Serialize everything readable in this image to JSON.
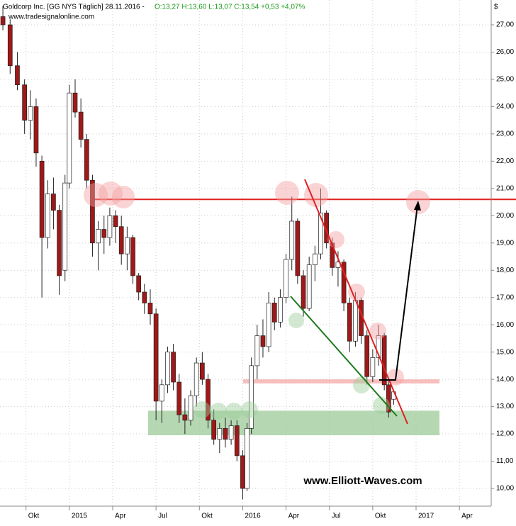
{
  "header": {
    "title": "Goldcorp Inc. [GG NYS  Täglich] 28.11.2016 -",
    "quote": "O:13,27 H:13,60 L:13,07 C:13,54 +0,53 +4,07%",
    "source": "www.tradesignalonline.com",
    "currency": "$"
  },
  "watermark": "www.Elliott-Waves.com",
  "chart_data": {
    "type": "candlestick",
    "x": [
      -1.6,
      -1.1,
      -0.6,
      -0.1,
      0.3,
      0.7,
      1.1,
      1.5,
      1.9,
      2.3,
      2.7,
      3.0,
      3.4,
      3.8,
      4.2,
      4.6,
      5.0,
      5.4,
      5.8,
      6.2,
      6.6,
      7.0,
      7.4,
      7.8,
      8.2,
      8.6,
      9.0,
      9.4,
      9.8,
      10.2,
      10.6,
      11.0,
      11.4,
      11.8,
      12.2,
      12.6,
      13.0,
      13.4,
      13.8,
      14.2,
      14.6,
      15.0,
      15.3,
      15.6,
      16.0,
      16.4,
      16.8,
      17.2,
      17.6,
      18.0,
      18.4,
      18.8,
      19.2,
      19.6,
      20.0,
      20.4,
      20.8,
      21.2,
      21.6,
      22.0,
      22.4,
      22.8,
      23.2,
      23.6,
      24.0,
      24.4,
      24.8,
      25.1,
      25.45
    ],
    "open": [
      27.3,
      27.0,
      25.5,
      24.8,
      23.5,
      24.0,
      22.0,
      19.2,
      20.8,
      20.2,
      18.0,
      21.2,
      24.5,
      23.8,
      22.8,
      21.3,
      19.0,
      19.5,
      19.2,
      20.0,
      19.6,
      18.6,
      19.2,
      17.8,
      17.2,
      16.8,
      16.4,
      13.2,
      13.8,
      15.0,
      13.9,
      12.7,
      12.5,
      13.4,
      14.6,
      14.0,
      12.5,
      11.8,
      12.2,
      11.8,
      12.3,
      11.2,
      10.0,
      12.2,
      14.5,
      15.6,
      15.2,
      16.8,
      16.1,
      17.0,
      18.4,
      19.8,
      17.8,
      16.6,
      18.2,
      18.6,
      20.1,
      19.0,
      18.1,
      18.3,
      16.8,
      15.4,
      16.9,
      15.6,
      14.1,
      14.8,
      15.6,
      13.8,
      13.27
    ],
    "high": [
      27.7,
      27.2,
      26.0,
      25.0,
      24.6,
      24.3,
      22.2,
      21.3,
      21.4,
      20.4,
      21.5,
      24.8,
      25.0,
      24.3,
      23.0,
      21.5,
      19.8,
      20.0,
      20.3,
      20.2,
      20.0,
      19.6,
      19.3,
      17.9,
      17.5,
      17.3,
      16.6,
      14.0,
      15.2,
      15.3,
      14.2,
      13.3,
      13.6,
      14.8,
      15.0,
      14.2,
      12.9,
      12.4,
      12.6,
      12.5,
      12.5,
      11.4,
      12.4,
      14.8,
      16.0,
      16.2,
      17.2,
      17.0,
      17.3,
      18.6,
      20.7,
      19.9,
      18.0,
      18.5,
      18.9,
      21.0,
      20.2,
      19.2,
      18.7,
      18.4,
      17.0,
      17.2,
      17.0,
      15.8,
      15.1,
      16.0,
      15.7,
      14.0,
      13.6
    ],
    "low": [
      26.8,
      25.2,
      24.6,
      23.0,
      22.8,
      21.8,
      17.0,
      18.8,
      19.5,
      17.1,
      17.6,
      21.0,
      23.6,
      22.5,
      21.0,
      18.5,
      18.0,
      18.6,
      18.9,
      19.0,
      18.2,
      18.0,
      17.5,
      16.9,
      16.4,
      16.0,
      12.5,
      12.4,
      13.5,
      13.6,
      12.4,
      12.0,
      12.3,
      13.0,
      13.8,
      12.2,
      11.6,
      11.3,
      11.5,
      11.6,
      11.0,
      9.6,
      9.9,
      12.0,
      14.0,
      14.8,
      15.0,
      15.8,
      15.9,
      16.8,
      18.0,
      17.5,
      16.3,
      16.5,
      17.6,
      18.4,
      18.8,
      17.8,
      17.4,
      16.5,
      15.0,
      15.2,
      15.3,
      13.8,
      13.9,
      14.5,
      13.6,
      12.6,
      13.07
    ],
    "close": [
      27.0,
      25.5,
      24.8,
      23.5,
      24.0,
      22.3,
      19.2,
      20.8,
      20.2,
      17.8,
      21.2,
      24.5,
      23.8,
      22.8,
      21.3,
      19.0,
      19.5,
      19.2,
      20.0,
      19.6,
      18.6,
      19.2,
      17.8,
      17.2,
      16.8,
      16.4,
      13.2,
      13.8,
      15.0,
      13.9,
      12.7,
      12.5,
      13.4,
      14.6,
      14.0,
      12.5,
      11.8,
      12.2,
      11.8,
      12.3,
      11.2,
      10.0,
      12.2,
      14.5,
      15.6,
      15.2,
      16.8,
      16.1,
      17.0,
      18.4,
      19.8,
      17.8,
      16.6,
      18.2,
      18.6,
      20.1,
      19.0,
      18.1,
      18.3,
      16.8,
      15.4,
      16.9,
      15.6,
      14.1,
      14.8,
      15.6,
      13.8,
      12.8,
      13.54
    ],
    "up_color": "#ffffff",
    "down_color": "#a01818",
    "hline": 20.6,
    "hline_color": "#e02020",
    "zones": [
      {
        "low": 11.95,
        "high": 12.85,
        "color": "#9ccb9a"
      },
      {
        "low": 13.85,
        "high": 14.0,
        "color": "#f4a8a8"
      }
    ],
    "xlim": [
      -1.8,
      32.2
    ],
    "ylim": [
      9.35,
      27.91
    ],
    "xticks": [
      {
        "value": 0,
        "label": "Okt"
      },
      {
        "value": 3,
        "label": "2015"
      },
      {
        "value": 6,
        "label": "Apr"
      },
      {
        "value": 9,
        "label": "Jul"
      },
      {
        "value": 12,
        "label": "Okt"
      },
      {
        "value": 15,
        "label": "2016"
      },
      {
        "value": 18,
        "label": "Apr"
      },
      {
        "value": 21,
        "label": "Jul"
      },
      {
        "value": 24,
        "label": "Okt"
      },
      {
        "value": 27,
        "label": "2017"
      },
      {
        "value": 30,
        "label": "Apr"
      }
    ],
    "yticks": [
      {
        "value": 10,
        "label": "10,00"
      },
      {
        "value": 11,
        "label": "11,00"
      },
      {
        "value": 12,
        "label": "12,00"
      },
      {
        "value": 13,
        "label": "13,00"
      },
      {
        "value": 14,
        "label": "14,00"
      },
      {
        "value": 15,
        "label": "15,00"
      },
      {
        "value": 16,
        "label": "16,00"
      },
      {
        "value": 17,
        "label": "17,00"
      },
      {
        "value": 18,
        "label": "18,00"
      },
      {
        "value": 19,
        "label": "19,00"
      },
      {
        "value": 20,
        "label": "20,00"
      },
      {
        "value": 21,
        "label": "21,00"
      },
      {
        "value": 22,
        "label": "22,00"
      },
      {
        "value": 23,
        "label": "23,00"
      },
      {
        "value": 24,
        "label": "24,00"
      },
      {
        "value": 25,
        "label": "25,00"
      },
      {
        "value": 26,
        "label": "26,00"
      },
      {
        "value": 27,
        "label": "27,00"
      }
    ],
    "grid": true
  }
}
